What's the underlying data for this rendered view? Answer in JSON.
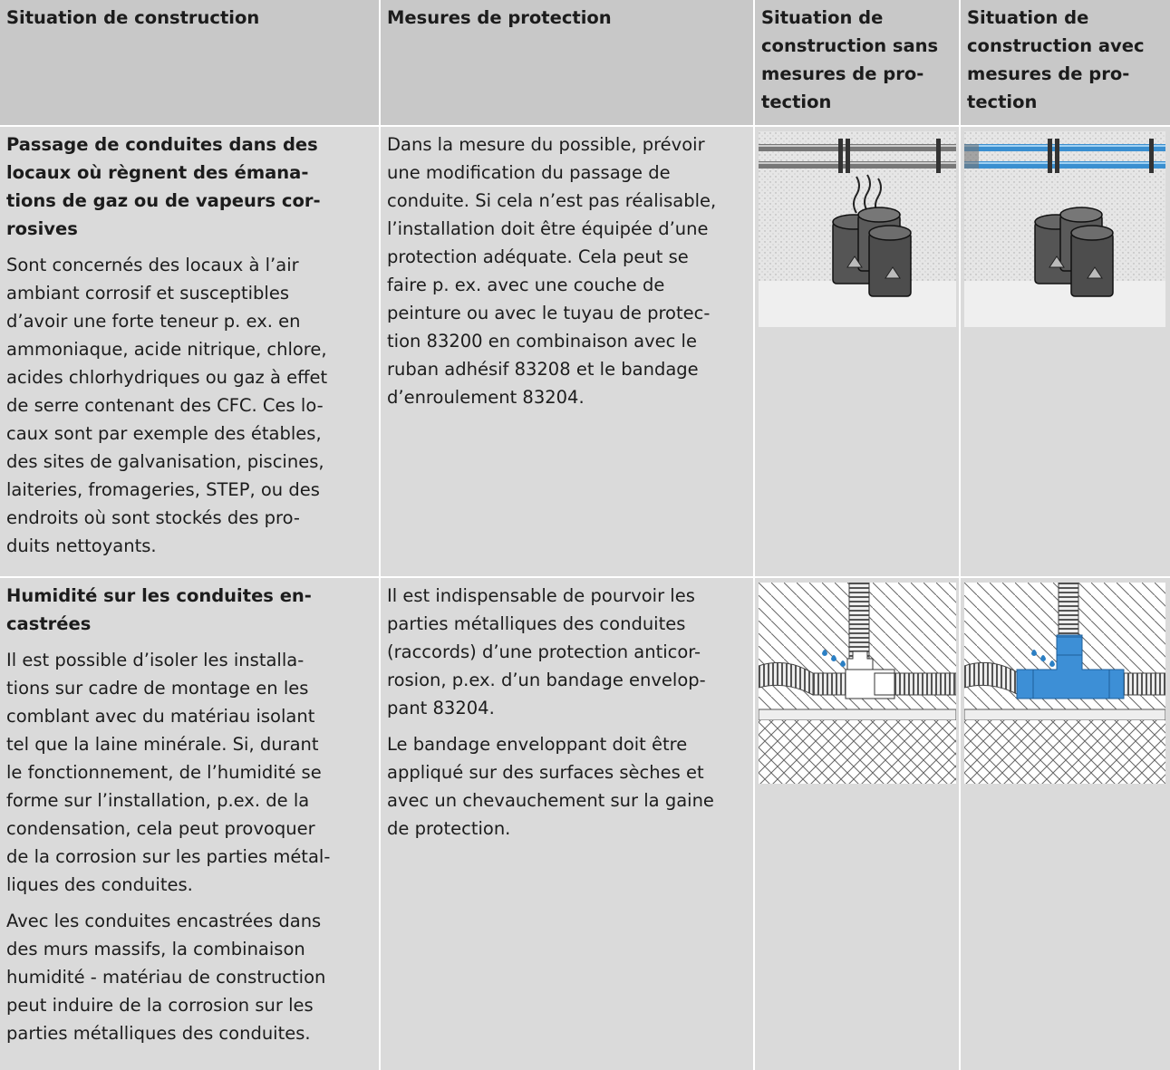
{
  "table": {
    "header": [
      [
        "Situation de construction"
      ],
      [
        "Mesures de protection"
      ],
      [
        "Situation de",
        "construction sans",
        "mesures de pro-",
        "tection"
      ],
      [
        "Situation de",
        "construction avec",
        "mesures de pro-",
        "tection"
      ]
    ],
    "rows": [
      {
        "title": [
          "Passage de conduites dans des",
          "locaux où règnent des émana-",
          "tions de gaz ou de vapeurs cor-",
          "rosives"
        ],
        "description": [
          [
            "Sont concernés des locaux à l’air",
            "ambiant corrosif et susceptibles",
            "d’avoir une forte teneur p. ex. en",
            "ammoniaque, acide nitrique, chlore,",
            "acides chlorhydriques ou gaz à effet",
            "de serre contenant des CFC. Ces lo-",
            "caux sont par exemple des étables,",
            "des sites de galvanisation, piscines,",
            "laiteries, fromageries, STEP, ou des",
            "endroits où sont stockés des pro-",
            "duits nettoyants."
          ]
        ],
        "measures": [
          [
            "Dans la mesure du possible, prévoir",
            "une modification du passage de",
            "conduite. Si cela n’est pas réalisable,",
            "l’installation doit être équipée d’une",
            "protection adéquate. Cela peut se",
            "faire p. ex. avec une couche de",
            "peinture ou avec le tuyau de protec-",
            "tion 83200 en combinaison avec le",
            "ruban adhésif 83208 et le bandage",
            "d’enroulement 83204."
          ]
        ]
      },
      {
        "title": [
          "Humidité sur les conduites en-",
          "castrées"
        ],
        "description": [
          [
            "Il est possible d’isoler les installa-",
            "tions sur cadre de montage en les",
            "comblant avec du matériau isolant",
            "tel que la laine minérale. Si, durant",
            "le fonctionnement, de l’humidité se",
            "forme sur l’installation, p.ex. de la",
            "condensation, cela peut provoquer",
            "de la corrosion sur les parties métal-",
            "liques des conduites."
          ],
          [
            "Avec les conduites encastrées dans",
            "des murs massifs, la combinaison",
            "humidité - matériau de construction",
            "peut induire de la corrosion sur les",
            "parties métalliques des conduites."
          ]
        ],
        "measures": [
          [
            "Il est indispensable de pourvoir les",
            "parties métalliques des conduites",
            "(raccords) d’une protection anticor-",
            "rosion, p.ex. d’un bandage envelop-",
            "pant 83204."
          ],
          [
            "Le bandage enveloppant doit être",
            "appliqué sur des surfaces sèches et",
            "avec un chevauchement sur la gaine",
            "de protection."
          ]
        ]
      }
    ]
  }
}
